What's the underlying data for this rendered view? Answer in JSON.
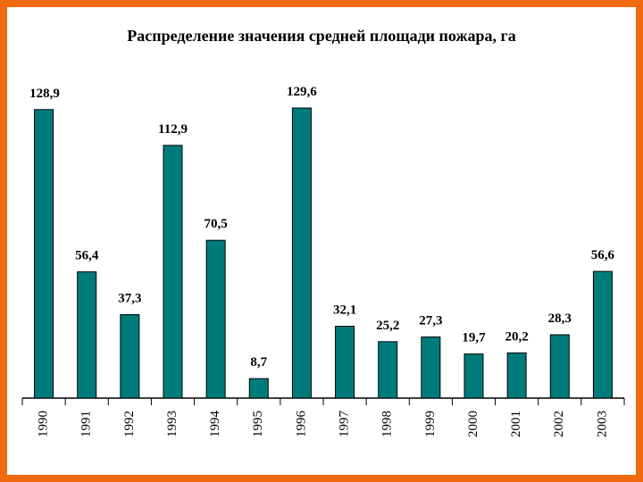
{
  "chart_data": {
    "type": "bar",
    "title": "Распределение значения средней площади пожара, га",
    "categories": [
      "1990",
      "1991",
      "1992",
      "1993",
      "1994",
      "1995",
      "1996",
      "1997",
      "1998",
      "1999",
      "2000",
      "2001",
      "2002",
      "2003"
    ],
    "values": [
      128.9,
      56.4,
      37.3,
      112.9,
      70.5,
      8.7,
      129.6,
      32.1,
      25.2,
      27.3,
      19.7,
      20.2,
      28.3,
      56.6
    ],
    "value_labels": [
      "128,9",
      "56,4",
      "37,3",
      "112,9",
      "70,5",
      "8,7",
      "129,6",
      "32,1",
      "25,2",
      "27,3",
      "19,7",
      "20,2",
      "28,3",
      "56,6"
    ],
    "bar_color": "#007b7b",
    "frame_color": "#f26a0f",
    "ylim": [
      0,
      130
    ],
    "grid": false,
    "legend": "none"
  }
}
